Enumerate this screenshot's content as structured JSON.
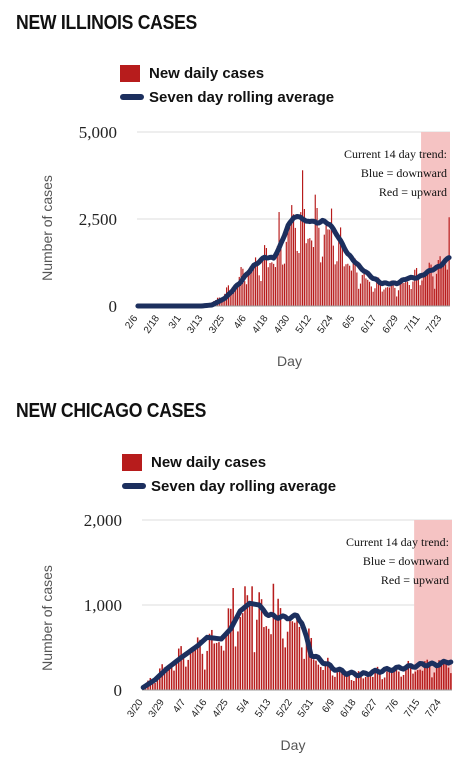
{
  "chart_data": [
    {
      "type": "bar",
      "title": "NEW ILLINOIS CASES",
      "xlabel": "Day",
      "ylabel": "Number of cases",
      "ylim": [
        0,
        5000
      ],
      "yticks": [
        "0",
        "2,500",
        "5,000"
      ],
      "xtick_labels": [
        "2/6",
        "2/18",
        "3/1",
        "3/13",
        "3/25",
        "4/6",
        "4/18",
        "4/30",
        "5/12",
        "5/24",
        "6/5",
        "6/17",
        "6/29",
        "7/11",
        "7/23"
      ],
      "x_start": "2020-02-06",
      "legend": [
        {
          "name": "New daily cases",
          "color": "#b71c1c"
        },
        {
          "name": "Seven day rolling average",
          "color": "#1c2f5e"
        }
      ],
      "annotation": [
        "Current 14 day trend:",
        "Blue = downward",
        "Red = upward"
      ],
      "trend_color": "#f5c3c3",
      "trend_start": "2020-07-12",
      "trend_end": "2020-07-27",
      "legend_position": "top-left",
      "grid": "horizontal",
      "avg_anchors": [
        [
          "2020-02-06",
          0
        ],
        [
          "2020-03-12",
          0
        ],
        [
          "2020-03-18",
          30
        ],
        [
          "2020-03-25",
          220
        ],
        [
          "2020-04-02",
          650
        ],
        [
          "2020-04-10",
          1150
        ],
        [
          "2020-04-16",
          1400
        ],
        [
          "2020-04-21",
          1380
        ],
        [
          "2020-04-24",
          1650
        ],
        [
          "2020-04-29",
          2300
        ],
        [
          "2020-05-02",
          2550
        ],
        [
          "2020-05-06",
          2560
        ],
        [
          "2020-05-09",
          2420
        ],
        [
          "2020-05-12",
          2450
        ],
        [
          "2020-05-15",
          2380
        ],
        [
          "2020-05-18",
          2450
        ],
        [
          "2020-05-22",
          2350
        ],
        [
          "2020-05-26",
          2050
        ],
        [
          "2020-06-01",
          1500
        ],
        [
          "2020-06-08",
          1100
        ],
        [
          "2020-06-15",
          800
        ],
        [
          "2020-06-20",
          650
        ],
        [
          "2020-06-28",
          650
        ],
        [
          "2020-07-04",
          800
        ],
        [
          "2020-07-10",
          820
        ],
        [
          "2020-07-16",
          1000
        ],
        [
          "2020-07-22",
          1150
        ],
        [
          "2020-07-27",
          1400
        ]
      ],
      "daily_anchors": [
        [
          "2020-02-06",
          0
        ],
        [
          "2020-03-10",
          5
        ],
        [
          "2020-03-16",
          60
        ],
        [
          "2020-03-22",
          250
        ],
        [
          "2020-03-30",
          700
        ],
        [
          "2020-04-06",
          1100
        ],
        [
          "2020-04-14",
          1450
        ],
        [
          "2020-04-24",
          1700
        ],
        [
          "2020-04-30",
          2500
        ],
        [
          "2020-05-06",
          2750
        ],
        [
          "2020-05-13",
          2400
        ],
        [
          "2020-05-22",
          2300
        ],
        [
          "2020-05-29",
          1800
        ],
        [
          "2020-06-06",
          1100
        ],
        [
          "2020-06-13",
          750
        ],
        [
          "2020-06-20",
          650
        ],
        [
          "2020-06-29",
          650
        ],
        [
          "2020-07-06",
          850
        ],
        [
          "2020-07-14",
          1050
        ],
        [
          "2020-07-21",
          1250
        ],
        [
          "2020-07-27",
          1500
        ]
      ],
      "spikes": [
        [
          "2020-05-07",
          3900
        ],
        [
          "2020-04-24",
          2700
        ],
        [
          "2020-05-14",
          3200
        ],
        [
          "2020-05-01",
          2900
        ],
        [
          "2020-05-23",
          2800
        ],
        [
          "2020-07-27",
          2550
        ]
      ]
    },
    {
      "type": "bar",
      "title": "NEW CHICAGO CASES",
      "xlabel": "Day",
      "ylabel": "Number of cases",
      "ylim": [
        0,
        2000
      ],
      "yticks": [
        "0",
        "1,000",
        "2,000"
      ],
      "xtick_labels": [
        "3/20",
        "3/29",
        "4/7",
        "4/16",
        "4/25",
        "5/4",
        "5/13",
        "5/22",
        "5/31",
        "6/9",
        "6/18",
        "6/27",
        "7/6",
        "7/15",
        "7/24"
      ],
      "x_start": "2020-03-20",
      "legend": [
        {
          "name": "New daily cases",
          "color": "#b71c1c"
        },
        {
          "name": "Seven day rolling average",
          "color": "#1c2f5e"
        }
      ],
      "annotation": [
        "Current 14 day trend:",
        "Blue = downward",
        "Red = upward"
      ],
      "trend_color": "#f5c3c3",
      "trend_start": "2020-07-13",
      "trend_end": "2020-07-28",
      "legend_position": "top-left",
      "grid": "horizontal",
      "avg_anchors": [
        [
          "2020-03-20",
          30
        ],
        [
          "2020-03-25",
          120
        ],
        [
          "2020-03-30",
          250
        ],
        [
          "2020-04-05",
          380
        ],
        [
          "2020-04-12",
          520
        ],
        [
          "2020-04-16",
          620
        ],
        [
          "2020-04-22",
          600
        ],
        [
          "2020-04-26",
          720
        ],
        [
          "2020-04-30",
          930
        ],
        [
          "2020-05-04",
          1020
        ],
        [
          "2020-05-08",
          1000
        ],
        [
          "2020-05-12",
          880
        ],
        [
          "2020-05-16",
          860
        ],
        [
          "2020-05-20",
          850
        ],
        [
          "2020-05-24",
          870
        ],
        [
          "2020-05-26",
          800
        ],
        [
          "2020-05-30",
          420
        ],
        [
          "2020-06-03",
          350
        ],
        [
          "2020-06-08",
          260
        ],
        [
          "2020-06-14",
          200
        ],
        [
          "2020-06-20",
          180
        ],
        [
          "2020-06-27",
          220
        ],
        [
          "2020-07-04",
          250
        ],
        [
          "2020-07-10",
          270
        ],
        [
          "2020-07-16",
          300
        ],
        [
          "2020-07-22",
          300
        ],
        [
          "2020-07-28",
          340
        ]
      ],
      "daily_anchors": [
        [
          "2020-03-20",
          40
        ],
        [
          "2020-03-27",
          250
        ],
        [
          "2020-04-04",
          420
        ],
        [
          "2020-04-12",
          560
        ],
        [
          "2020-04-20",
          650
        ],
        [
          "2020-04-28",
          900
        ],
        [
          "2020-05-04",
          1050
        ],
        [
          "2020-05-12",
          900
        ],
        [
          "2020-05-20",
          880
        ],
        [
          "2020-05-26",
          800
        ],
        [
          "2020-06-02",
          380
        ],
        [
          "2020-06-10",
          250
        ],
        [
          "2020-06-18",
          180
        ],
        [
          "2020-06-27",
          230
        ],
        [
          "2020-07-06",
          270
        ],
        [
          "2020-07-15",
          300
        ],
        [
          "2020-07-24",
          330
        ],
        [
          "2020-07-28",
          350
        ]
      ],
      "spikes": [
        [
          "2020-05-14",
          1250
        ],
        [
          "2020-05-02",
          1220
        ],
        [
          "2020-05-05",
          1220
        ],
        [
          "2020-04-27",
          1200
        ],
        [
          "2020-05-08",
          1150
        ]
      ]
    }
  ]
}
